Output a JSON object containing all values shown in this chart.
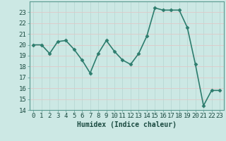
{
  "x": [
    0,
    1,
    2,
    3,
    4,
    5,
    6,
    7,
    8,
    9,
    10,
    11,
    12,
    13,
    14,
    15,
    16,
    17,
    18,
    19,
    20,
    21,
    22,
    23
  ],
  "y": [
    20.0,
    20.0,
    19.2,
    20.3,
    20.4,
    19.6,
    18.6,
    17.4,
    19.2,
    20.4,
    19.4,
    18.6,
    18.2,
    19.2,
    20.8,
    23.4,
    23.2,
    23.2,
    23.2,
    21.6,
    18.2,
    14.4,
    15.8,
    15.8
  ],
  "line_color": "#2e7d6e",
  "marker": "D",
  "marker_size": 2.5,
  "bg_color": "#cce8e4",
  "grid_color": "#b8d8d4",
  "grid_color2": "#e0c8c8",
  "xlabel": "Humidex (Indice chaleur)",
  "ylim": [
    14,
    24
  ],
  "xlim": [
    -0.5,
    23.5
  ],
  "yticks": [
    14,
    15,
    16,
    17,
    18,
    19,
    20,
    21,
    22,
    23
  ],
  "xlabel_fontsize": 7,
  "tick_fontsize": 6.5,
  "line_width": 1.2
}
